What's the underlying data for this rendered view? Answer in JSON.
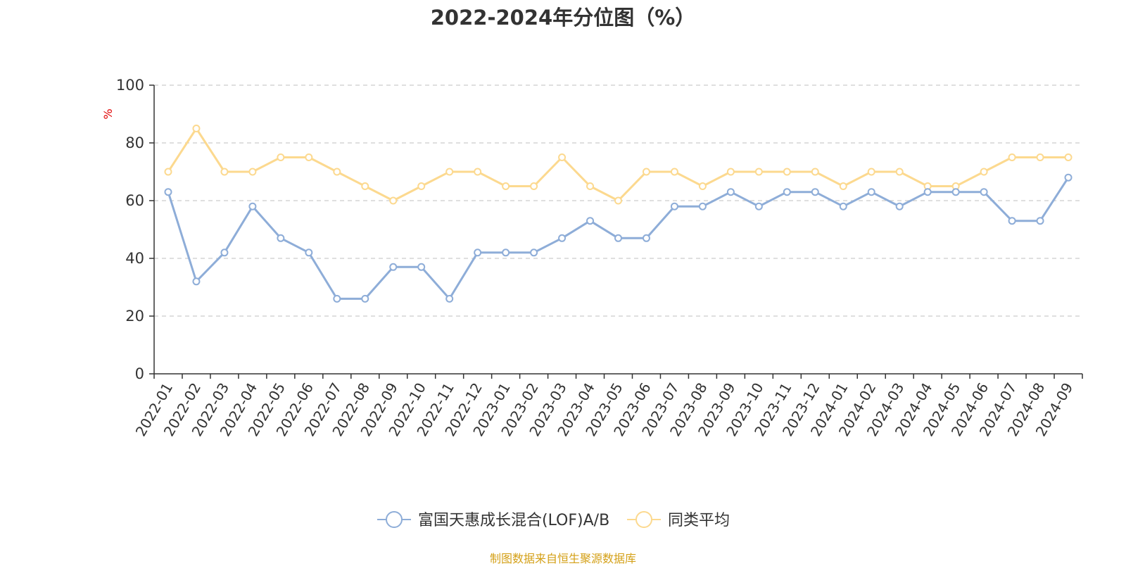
{
  "chart_data": {
    "type": "line",
    "title": "2022-2024年分位图（%）",
    "ylabel": "%",
    "xlabel": "",
    "ylim": [
      0,
      100
    ],
    "yticks": [
      0,
      20,
      40,
      60,
      80,
      100
    ],
    "grid": "horizontal-dashed",
    "legend_position": "bottom",
    "categories": [
      "2022-01",
      "2022-02",
      "2022-03",
      "2022-04",
      "2022-05",
      "2022-06",
      "2022-07",
      "2022-08",
      "2022-09",
      "2022-10",
      "2022-11",
      "2022-12",
      "2023-01",
      "2023-02",
      "2023-03",
      "2023-04",
      "2023-05",
      "2023-06",
      "2023-07",
      "2023-08",
      "2023-09",
      "2023-10",
      "2023-11",
      "2023-12",
      "2024-01",
      "2024-02",
      "2024-03",
      "2024-04",
      "2024-05",
      "2024-06",
      "2024-07",
      "2024-08",
      "2024-09"
    ],
    "series": [
      {
        "name": "富国天惠成长混合(LOF)A/B",
        "color": "#8eadd8",
        "values": [
          63,
          32,
          42,
          58,
          47,
          42,
          26,
          26,
          37,
          37,
          26,
          42,
          42,
          42,
          47,
          53,
          47,
          47,
          58,
          58,
          63,
          58,
          63,
          63,
          58,
          63,
          58,
          63,
          63,
          63,
          53,
          53,
          68
        ]
      },
      {
        "name": "同类平均",
        "color": "#fcd98f",
        "values": [
          70,
          85,
          70,
          70,
          75,
          75,
          70,
          65,
          60,
          65,
          70,
          70,
          65,
          65,
          75,
          65,
          60,
          70,
          70,
          65,
          70,
          70,
          70,
          70,
          65,
          70,
          70,
          65,
          65,
          70,
          75,
          75,
          75
        ]
      }
    ]
  },
  "source_text": "制图数据来自恒生聚源数据库"
}
